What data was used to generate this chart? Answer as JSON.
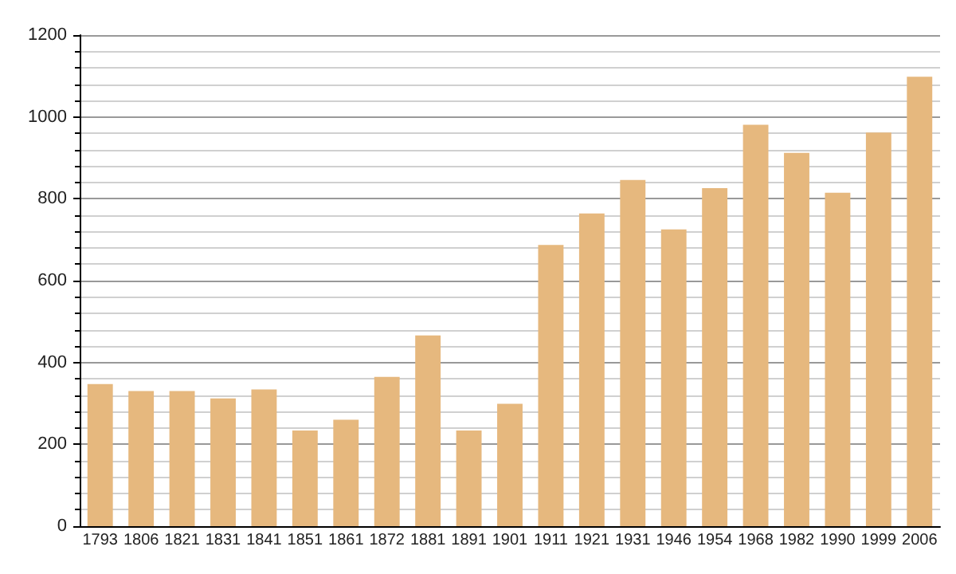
{
  "chart_data": {
    "type": "bar",
    "categories": [
      "1793",
      "1806",
      "1821",
      "1831",
      "1841",
      "1851",
      "1861",
      "1872",
      "1881",
      "1891",
      "1901",
      "1911",
      "1921",
      "1931",
      "1946",
      "1954",
      "1968",
      "1982",
      "1990",
      "1999",
      "2006"
    ],
    "values": [
      347,
      330,
      330,
      312,
      334,
      234,
      260,
      365,
      466,
      234,
      299,
      687,
      764,
      846,
      725,
      826,
      981,
      912,
      815,
      962,
      1098
    ],
    "color": "#e6b87e",
    "ylim": [
      0,
      1200
    ],
    "yticks": [
      0,
      200,
      400,
      600,
      800,
      1000,
      1200
    ],
    "grid": "y"
  }
}
